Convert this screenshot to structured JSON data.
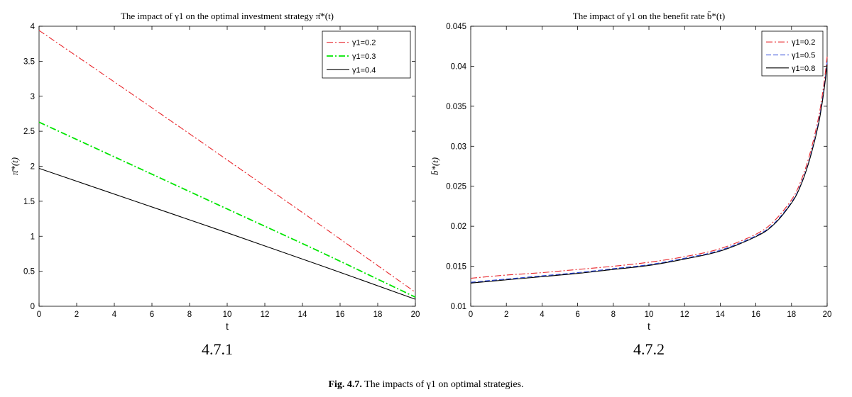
{
  "chart_data": [
    {
      "type": "line",
      "id": "4.7.1",
      "title": "The impact of γ1 on the optimal investment strategy π̄*(t)",
      "subfig_label": "4.7.1",
      "xlabel": "t",
      "ylabel": "π̄*(t)",
      "xlim": [
        0,
        20
      ],
      "ylim": [
        0,
        4
      ],
      "xticks": [
        "0",
        "2",
        "4",
        "6",
        "8",
        "10",
        "12",
        "14",
        "16",
        "18",
        "20"
      ],
      "yticks": [
        "0",
        "0.5",
        "1",
        "1.5",
        "2",
        "2.5",
        "3",
        "3.5",
        "4"
      ],
      "legend_position": "top-right",
      "x": [
        0,
        5,
        10,
        15,
        20
      ],
      "series": [
        {
          "name": "γ1=0.2",
          "color": "#e8262b",
          "dash": "dashdot",
          "values": [
            3.94,
            3.02,
            2.09,
            1.15,
            0.2
          ]
        },
        {
          "name": "γ1=0.3",
          "color": "#00e600",
          "dash": "dashdot",
          "values": [
            2.63,
            2.01,
            1.39,
            0.77,
            0.13
          ]
        },
        {
          "name": "γ1=0.4",
          "color": "#000000",
          "dash": "solid",
          "values": [
            1.97,
            1.51,
            1.05,
            0.58,
            0.1
          ]
        }
      ]
    },
    {
      "type": "line",
      "id": "4.7.2",
      "title": "The impact of γ1 on the benefit rate b̄*(t)",
      "subfig_label": "4.7.2",
      "xlabel": "t",
      "ylabel": "b̄*(t)",
      "xlim": [
        0,
        20
      ],
      "ylim": [
        0.01,
        0.045
      ],
      "xticks": [
        "0",
        "2",
        "4",
        "6",
        "8",
        "10",
        "12",
        "14",
        "16",
        "18",
        "20"
      ],
      "yticks": [
        "0.01",
        "0.015",
        "0.02",
        "0.025",
        "0.03",
        "0.035",
        "0.04",
        "0.045"
      ],
      "legend_position": "top-right",
      "x": [
        0,
        2,
        4,
        6,
        8,
        10,
        12,
        14,
        16,
        17,
        18,
        18.5,
        19,
        19.5,
        19.8,
        20
      ],
      "series": [
        {
          "name": "γ1=0.2",
          "color": "#e8262b",
          "dash": "dashdot",
          "values": [
            0.0135,
            0.0139,
            0.0142,
            0.0146,
            0.015,
            0.0155,
            0.0162,
            0.0172,
            0.019,
            0.0206,
            0.0233,
            0.0255,
            0.0288,
            0.0334,
            0.0375,
            0.0412
          ]
        },
        {
          "name": "γ1=0.5",
          "color": "#1f3bd6",
          "dash": "dash",
          "values": [
            0.013,
            0.0134,
            0.0138,
            0.0142,
            0.0147,
            0.0152,
            0.016,
            0.017,
            0.0188,
            0.0203,
            0.023,
            0.0251,
            0.0283,
            0.0328,
            0.0368,
            0.0405
          ]
        },
        {
          "name": "γ1=0.8",
          "color": "#000000",
          "dash": "solid",
          "values": [
            0.0129,
            0.0133,
            0.0137,
            0.0141,
            0.0146,
            0.0151,
            0.0159,
            0.0169,
            0.0187,
            0.0202,
            0.0229,
            0.025,
            0.0282,
            0.0326,
            0.0366,
            0.0402
          ]
        }
      ]
    }
  ],
  "caption": {
    "label": "Fig. 4.7.",
    "text": " The impacts of γ1 on optimal strategies."
  }
}
